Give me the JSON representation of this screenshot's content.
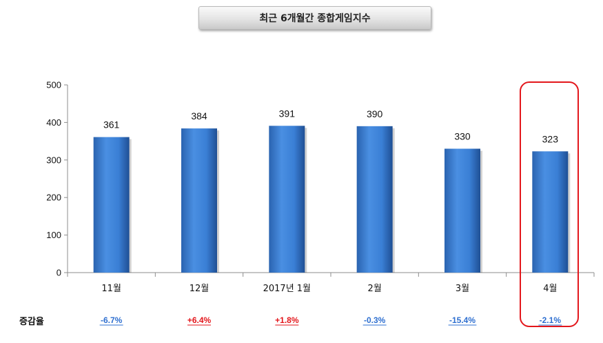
{
  "chart_data": {
    "type": "bar",
    "title": "최근 6개월간 종합게임지수",
    "categories": [
      "11월",
      "12월",
      "2017년 1월",
      "2월",
      "3월",
      "4월"
    ],
    "values": [
      361,
      384,
      391,
      390,
      330,
      323
    ],
    "ylim": [
      0,
      500
    ],
    "yticks": [
      0,
      100,
      200,
      300,
      400,
      500
    ],
    "xlabel": "",
    "ylabel": "",
    "grid": false,
    "bar_color": "#3a7fd5",
    "highlight_category": "4월",
    "highlight_color": "#e3161b",
    "change_row": {
      "label": "증감율",
      "values": [
        "-6.7%",
        "+6.4%",
        "+1.8%",
        "-0.3%",
        "-15.4%",
        "-2.1%"
      ],
      "colors": [
        "#2e6fd0",
        "#e3161b",
        "#e3161b",
        "#2e6fd0",
        "#2e6fd0",
        "#2e6fd0"
      ]
    }
  }
}
